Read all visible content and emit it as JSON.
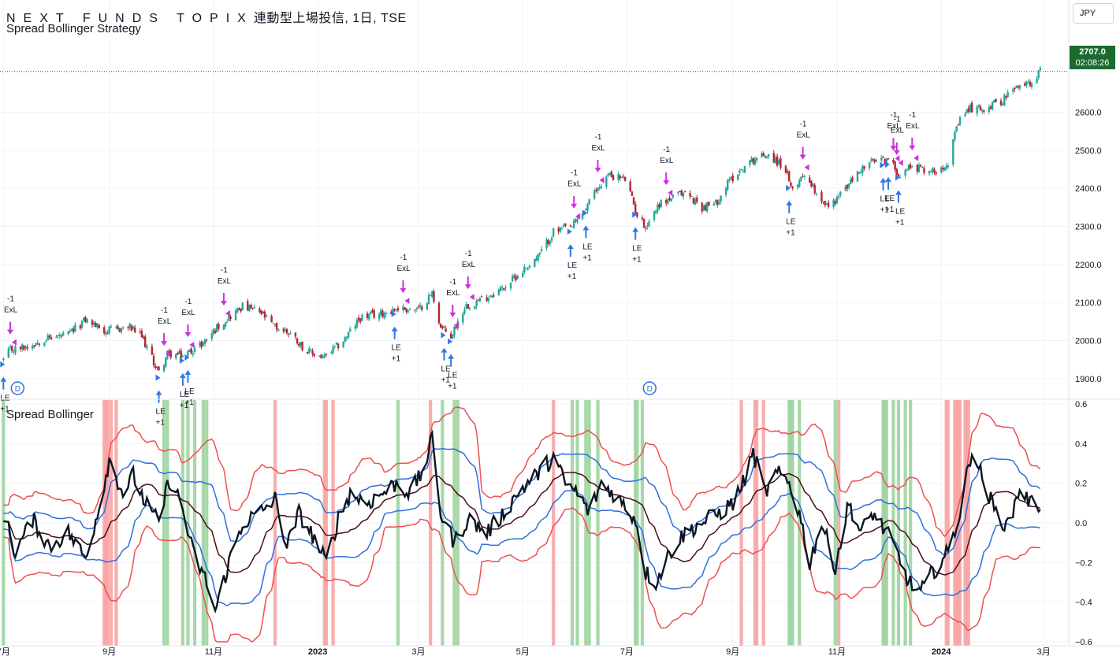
{
  "header": {
    "ticker": "NEXT FUNDS TOPIX",
    "title_rest": "連動型上場投信, 1日, TSE",
    "strategy_name": "Spread Bollinger Strategy",
    "oscillator_name": "Spread Bollinger"
  },
  "currency_button": "JPY",
  "last_price": {
    "value": "2707.0",
    "countdown": "02:08:26"
  },
  "colors": {
    "up_candle": "#26a69a",
    "down_candle": "#b22833",
    "spread_line": "#0d1521",
    "mid_band": "#4a0f12",
    "inner_band": "#2f6fdc",
    "outer_band": "#ef4f4f",
    "green_zone": "#9fd4a0",
    "red_zone": "#f7a5a5",
    "long_entry_arrow": "#2f78e8",
    "exit_arrow": "#cc2ee0"
  },
  "chart_data": [
    {
      "type": "candlestick",
      "title": "NEXT FUNDS TOPIX 連動型上場投信, 1日, TSE",
      "x_unit": "trading days (Jul 2022 – Mar 2024)",
      "y_axis": {
        "ticks": [
          1900,
          2000,
          2100,
          2200,
          2300,
          2400,
          2500,
          2600
        ],
        "tick_labels": [
          "1900.0",
          "2000.0",
          "2100.0",
          "2200.0",
          "2300.0",
          "2400.0",
          "2500.0",
          "2600.0"
        ],
        "ylim": [
          1850,
          2750
        ]
      },
      "x_axis": {
        "tick_labels": [
          "7月",
          "9月",
          "11月",
          "2023",
          "3月",
          "5月",
          "7月",
          "9月",
          "11月",
          "2024",
          "3月"
        ]
      },
      "last_price": 2707.0,
      "price_anchors": [
        [
          "2022-07-01",
          1950
        ],
        [
          "2022-07-05",
          1975
        ],
        [
          "2022-07-15",
          1985
        ],
        [
          "2022-07-25",
          2005
        ],
        [
          "2022-08-08",
          2015
        ],
        [
          "2022-08-18",
          2055
        ],
        [
          "2022-08-30",
          2025
        ],
        [
          "2022-09-13",
          2035
        ],
        [
          "2022-09-20",
          2010
        ],
        [
          "2022-09-30",
          1915
        ],
        [
          "2022-10-05",
          1965
        ],
        [
          "2022-10-14",
          1960
        ],
        [
          "2022-10-25",
          1990
        ],
        [
          "2022-11-04",
          2040
        ],
        [
          "2022-11-18",
          2090
        ],
        [
          "2022-11-28",
          2075
        ],
        [
          "2022-12-07",
          2035
        ],
        [
          "2022-12-16",
          2020
        ],
        [
          "2022-12-26",
          1970
        ],
        [
          "2023-01-05",
          1955
        ],
        [
          "2023-01-16",
          2000
        ],
        [
          "2023-01-26",
          2060
        ],
        [
          "2023-02-06",
          2070
        ],
        [
          "2023-02-17",
          2085
        ],
        [
          "2023-03-01",
          2080
        ],
        [
          "2023-03-09",
          2125
        ],
        [
          "2023-03-14",
          2035
        ],
        [
          "2023-03-20",
          2010
        ],
        [
          "2023-03-28",
          2090
        ],
        [
          "2023-04-10",
          2115
        ],
        [
          "2023-04-20",
          2140
        ],
        [
          "2023-05-01",
          2185
        ],
        [
          "2023-05-10",
          2220
        ],
        [
          "2023-05-19",
          2285
        ],
        [
          "2023-05-30",
          2300
        ],
        [
          "2023-06-06",
          2340
        ],
        [
          "2023-06-13",
          2395
        ],
        [
          "2023-06-20",
          2435
        ],
        [
          "2023-06-30",
          2425
        ],
        [
          "2023-07-07",
          2330
        ],
        [
          "2023-07-12",
          2300
        ],
        [
          "2023-07-20",
          2360
        ],
        [
          "2023-07-28",
          2375
        ],
        [
          "2023-08-04",
          2390
        ],
        [
          "2023-08-14",
          2350
        ],
        [
          "2023-08-22",
          2360
        ],
        [
          "2023-08-30",
          2420
        ],
        [
          "2023-09-06",
          2450
        ],
        [
          "2023-09-14",
          2480
        ],
        [
          "2023-09-22",
          2490
        ],
        [
          "2023-10-02",
          2450
        ],
        [
          "2023-10-05",
          2395
        ],
        [
          "2023-10-13",
          2440
        ],
        [
          "2023-10-20",
          2390
        ],
        [
          "2023-10-27",
          2350
        ],
        [
          "2023-11-06",
          2400
        ],
        [
          "2023-11-15",
          2450
        ],
        [
          "2023-11-22",
          2470
        ],
        [
          "2023-12-01",
          2475
        ],
        [
          "2023-12-08",
          2435
        ],
        [
          "2023-12-14",
          2460
        ],
        [
          "2023-12-22",
          2450
        ],
        [
          "2023-12-28",
          2445
        ],
        [
          "2024-01-05",
          2470
        ],
        [
          "2024-01-11",
          2570
        ],
        [
          "2024-01-17",
          2610
        ],
        [
          "2024-01-26",
          2610
        ],
        [
          "2024-02-05",
          2630
        ],
        [
          "2024-02-13",
          2660
        ],
        [
          "2024-02-22",
          2680
        ],
        [
          "2024-02-28",
          2707
        ]
      ]
    },
    {
      "type": "line",
      "title": "Spread Bollinger",
      "y_axis": {
        "ticks": [
          0.6,
          0.4,
          0.2,
          0.0,
          -0.2,
          -0.4,
          -0.6
        ],
        "tick_labels": [
          "0.6",
          "0.4",
          "0.2",
          "0.0",
          "−0.2",
          "−0.4",
          "−0.6"
        ],
        "ylim": [
          -0.62,
          0.62
        ]
      },
      "series": [
        {
          "key": "spread",
          "anchors": [
            [
              "2022-07-01",
              0.05
            ],
            [
              "2022-07-08",
              -0.15
            ],
            [
              "2022-07-18",
              0.02
            ],
            [
              "2022-07-28",
              -0.12
            ],
            [
              "2022-08-08",
              -0.05
            ],
            [
              "2022-08-18",
              -0.18
            ],
            [
              "2022-08-26",
              0.08
            ],
            [
              "2022-09-01",
              0.32
            ],
            [
              "2022-09-09",
              0.15
            ],
            [
              "2022-09-15",
              0.24
            ],
            [
              "2022-09-22",
              0.1
            ],
            [
              "2022-09-30",
              0.0
            ],
            [
              "2022-10-06",
              0.22
            ],
            [
              "2022-10-13",
              0.1
            ],
            [
              "2022-10-20",
              -0.15
            ],
            [
              "2022-10-28",
              -0.3
            ],
            [
              "2022-11-02",
              -0.45
            ],
            [
              "2022-11-10",
              -0.2
            ],
            [
              "2022-11-18",
              0.0
            ],
            [
              "2022-11-28",
              0.05
            ],
            [
              "2022-12-07",
              0.12
            ],
            [
              "2022-12-14",
              -0.12
            ],
            [
              "2022-12-21",
              0.05
            ],
            [
              "2022-12-28",
              -0.05
            ],
            [
              "2023-01-06",
              -0.2
            ],
            [
              "2023-01-13",
              0.02
            ],
            [
              "2023-01-20",
              0.15
            ],
            [
              "2023-01-30",
              0.1
            ],
            [
              "2023-02-08",
              0.15
            ],
            [
              "2023-02-16",
              0.2
            ],
            [
              "2023-02-24",
              0.15
            ],
            [
              "2023-03-03",
              0.25
            ],
            [
              "2023-03-09",
              0.42
            ],
            [
              "2023-03-14",
              0.05
            ],
            [
              "2023-03-22",
              -0.1
            ],
            [
              "2023-03-30",
              0.02
            ],
            [
              "2023-04-10",
              -0.05
            ],
            [
              "2023-04-20",
              0.05
            ],
            [
              "2023-04-28",
              0.15
            ],
            [
              "2023-05-10",
              0.25
            ],
            [
              "2023-05-19",
              0.33
            ],
            [
              "2023-05-26",
              0.2
            ],
            [
              "2023-06-02",
              0.15
            ],
            [
              "2023-06-09",
              0.05
            ],
            [
              "2023-06-16",
              0.2
            ],
            [
              "2023-06-23",
              0.15
            ],
            [
              "2023-06-30",
              0.08
            ],
            [
              "2023-07-06",
              0.02
            ],
            [
              "2023-07-12",
              -0.25
            ],
            [
              "2023-07-18",
              -0.3
            ],
            [
              "2023-07-26",
              -0.15
            ],
            [
              "2023-08-04",
              -0.05
            ],
            [
              "2023-08-14",
              0.0
            ],
            [
              "2023-08-24",
              0.05
            ],
            [
              "2023-09-01",
              0.1
            ],
            [
              "2023-09-07",
              0.2
            ],
            [
              "2023-09-13",
              0.35
            ],
            [
              "2023-09-20",
              0.15
            ],
            [
              "2023-09-27",
              0.25
            ],
            [
              "2023-10-04",
              0.2
            ],
            [
              "2023-10-10",
              0.05
            ],
            [
              "2023-10-16",
              -0.2
            ],
            [
              "2023-10-23",
              0.0
            ],
            [
              "2023-10-31",
              -0.22
            ],
            [
              "2023-11-08",
              0.1
            ],
            [
              "2023-11-15",
              -0.05
            ],
            [
              "2023-11-22",
              0.05
            ],
            [
              "2023-11-30",
              -0.05
            ],
            [
              "2023-12-06",
              -0.15
            ],
            [
              "2023-12-13",
              -0.3
            ],
            [
              "2023-12-20",
              -0.35
            ],
            [
              "2023-12-27",
              -0.25
            ],
            [
              "2024-01-05",
              -0.15
            ],
            [
              "2024-01-12",
              0.05
            ],
            [
              "2024-01-19",
              0.38
            ],
            [
              "2024-01-26",
              0.2
            ],
            [
              "2024-02-02",
              0.05
            ],
            [
              "2024-02-09",
              -0.02
            ],
            [
              "2024-02-16",
              0.18
            ],
            [
              "2024-02-22",
              0.1
            ],
            [
              "2024-02-28",
              0.09
            ]
          ]
        }
      ],
      "bands": "Bollinger bands on spread: mid (dark red), inner ±1σ (blue), outer ±2σ (red)",
      "green_zone_dates": [
        "2022-07-01",
        "2022-10-03",
        "2022-10-05",
        "2022-10-14",
        "2022-10-17",
        "2022-10-21",
        "2022-10-26",
        "2022-10-28",
        "2023-02-17",
        "2023-03-15",
        "2023-03-22",
        "2023-03-24",
        "2023-05-30",
        "2023-06-02",
        "2023-06-07",
        "2023-06-09",
        "2023-06-14",
        "2023-07-06",
        "2023-07-07",
        "2023-07-10",
        "2023-10-04",
        "2023-10-05",
        "2023-10-06",
        "2023-10-10",
        "2023-10-31",
        "2023-11-28",
        "2023-11-29",
        "2023-11-30",
        "2023-12-04",
        "2023-12-07",
        "2023-12-11",
        "2023-12-14"
      ],
      "red_zone_dates": [
        "2022-08-29",
        "2022-08-30",
        "2022-08-31",
        "2022-09-02",
        "2022-09-05",
        "2022-12-07",
        "2023-01-05",
        "2023-01-06",
        "2023-01-10",
        "2023-03-08",
        "2023-05-19",
        "2023-09-06",
        "2023-09-14",
        "2023-09-15",
        "2023-09-19",
        "2023-11-02",
        "2024-01-04",
        "2024-01-05",
        "2024-01-09",
        "2024-01-10",
        "2024-01-11",
        "2024-01-12",
        "2024-01-15",
        "2024-01-16",
        "2024-01-17"
      ]
    }
  ],
  "signals": {
    "long_entry_label": "LE",
    "long_entry_qty": "+1",
    "exit_label": "ExL",
    "exit_qty": "-1",
    "event_marker": "D",
    "long_entries": [
      "2022-07-01",
      "2022-09-30",
      "2022-10-14",
      "2022-10-17",
      "2023-02-15",
      "2023-03-16",
      "2023-03-20",
      "2023-05-29",
      "2023-06-07",
      "2023-07-06",
      "2023-10-04",
      "2023-11-28",
      "2023-12-01",
      "2023-12-07"
    ],
    "exits": [
      "2022-07-05",
      "2022-10-03",
      "2022-10-17",
      "2022-11-07",
      "2023-02-20",
      "2023-03-21",
      "2023-03-30",
      "2023-05-31",
      "2023-06-14",
      "2023-07-24",
      "2023-10-12",
      "2023-12-04",
      "2023-12-06",
      "2023-12-15"
    ],
    "event_dates": [
      "2022-07-01",
      "2023-07-06"
    ]
  },
  "currency": "JPY"
}
